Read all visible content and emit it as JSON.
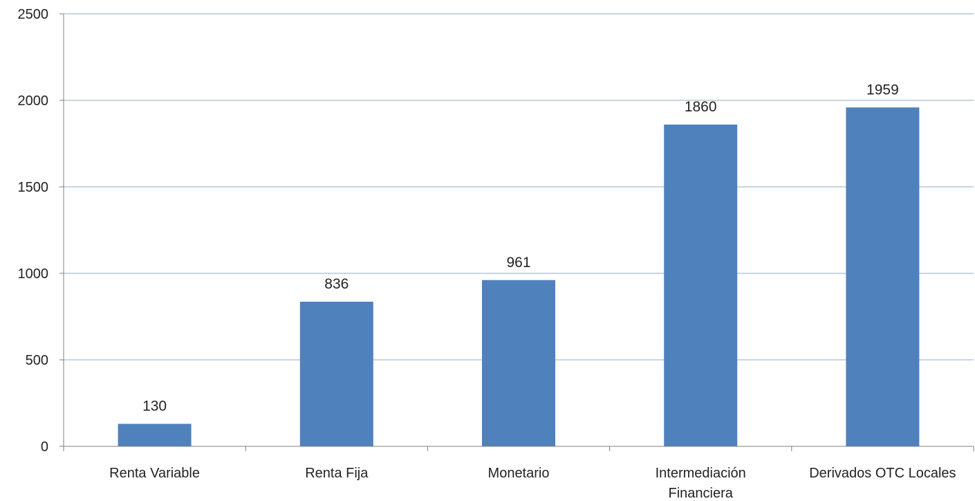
{
  "chart_data": {
    "type": "bar",
    "title": "",
    "xlabel": "",
    "ylabel": "",
    "categories": [
      [
        "Renta Variable"
      ],
      [
        "Renta Fija"
      ],
      [
        "Monetario"
      ],
      [
        "Intermediación",
        "Financiera"
      ],
      [
        "Derivados OTC Locales"
      ]
    ],
    "values": [
      130,
      836,
      961,
      1860,
      1959
    ],
    "data_labels": [
      "130",
      "836",
      "961",
      "1860",
      "1959"
    ],
    "ylim": [
      0,
      2500
    ],
    "yticks": [
      0,
      500,
      1000,
      1500,
      2000,
      2500
    ],
    "ytick_labels": [
      "0",
      "500",
      "1000",
      "1500",
      "2000",
      "2500"
    ],
    "grid": true,
    "legend": "none",
    "colors": {
      "bar": "#4F81BD",
      "grid": "#A9BCD4",
      "axis": "#7F7F7F"
    }
  }
}
